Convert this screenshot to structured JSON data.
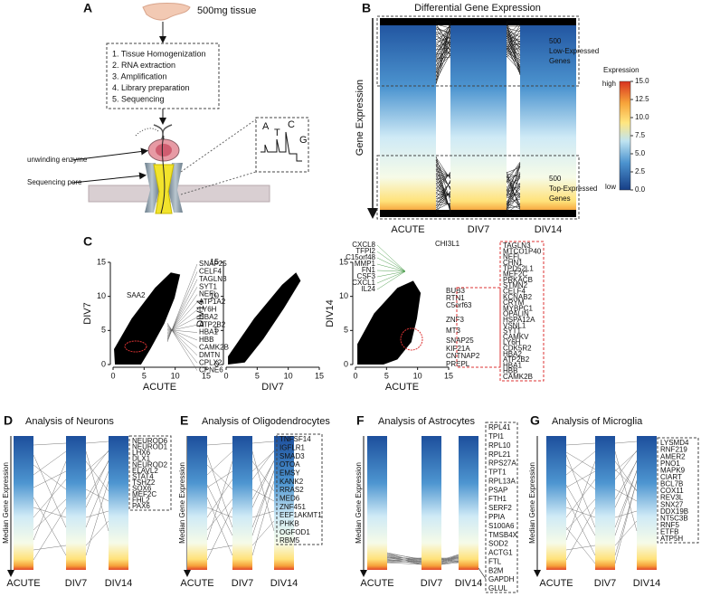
{
  "panel_a": {
    "letter": "A",
    "tissue": "500mg tissue",
    "steps": [
      "1. Tissue Homogenization",
      "2. RNA extraction",
      "3. Amplification",
      "4. Library preparation",
      "5. Sequencing"
    ],
    "enzyme": "unwinding enzyme",
    "pore": "Sequencing pore",
    "bases": [
      "A",
      "T",
      "C",
      "G"
    ]
  },
  "panel_b": {
    "letter": "B",
    "title": "Differential Gene Expression",
    "ylabel": "Gene Expression",
    "columns": [
      "ACUTE",
      "DIV7",
      "DIV14"
    ],
    "low_group": [
      "500",
      "Low-Expressed",
      "Genes"
    ],
    "top_group": [
      "500",
      "Top-Expressed",
      "Genes"
    ],
    "colorbar": {
      "title": "Expression",
      "high": "high",
      "low": "low",
      "lim": [
        0,
        15
      ],
      "ticks": [
        {
          "value": 0,
          "label": "0.0"
        },
        {
          "value": 2.5,
          "label": "2.5"
        },
        {
          "value": 5,
          "label": "5.0"
        },
        {
          "value": 7.5,
          "label": "7.5"
        },
        {
          "value": 10,
          "label": "10.0"
        },
        {
          "value": 12.5,
          "label": "12.5"
        },
        {
          "value": 15,
          "label": "15.0"
        }
      ]
    }
  },
  "panel_c": {
    "letter": "C",
    "plots": [
      {
        "xlabel": "ACUTE",
        "ylabel": "DIV7",
        "xlim": [
          0,
          15
        ],
        "ylim": [
          0,
          15
        ],
        "xticks": [
          0,
          5,
          10,
          15
        ],
        "yticks": [
          0,
          5,
          10,
          15
        ],
        "genes": [
          "SNAP25",
          "CELF4",
          "TAGLN3",
          "SYT1",
          "NEFL",
          "ATP1A2",
          "LY6H",
          "HBA2",
          "ATP2B2",
          "HBA1",
          "HBB",
          "CAMK2B",
          "DMTN",
          "CPLX2",
          "CPNE6"
        ],
        "other_genes": [
          "SAA2"
        ]
      },
      {
        "xlabel": "DIV7",
        "ylabel": "DIV14",
        "xlim": [
          0,
          15
        ],
        "ylim": [
          0,
          15
        ],
        "xticks": [
          0,
          5,
          10,
          15
        ],
        "yticks": [
          0,
          5,
          10,
          15
        ]
      },
      {
        "xlabel": "ACUTE",
        "ylabel": "DIV14",
        "xlim": [
          0,
          15
        ],
        "ylim": [
          0,
          15
        ],
        "xticks": [
          0,
          5,
          10,
          15
        ],
        "yticks": [
          0,
          5,
          10,
          15
        ],
        "up_genes": [
          "CXCL8",
          "TFPI2",
          "C15orf48",
          "MMP1",
          "FN1",
          "CSF3",
          "CXCL1",
          "IL24"
        ],
        "top_gene": "CHI3L1",
        "down_genes": [
          "BUB3",
          "RTN1",
          "C5orf63",
          "ZNF3",
          "MT3",
          "SNAP25",
          "KIF21A",
          "CNTNAP2",
          "PREPL"
        ],
        "box_genes": [
          "TAGLN3",
          "MTCO1P40",
          "NEFL",
          "CHN1",
          "TPD52L1",
          "MEF2C",
          "PRKACB",
          "STMN2",
          "CELF4",
          "KCNAB2",
          "CRYM",
          "MYBPC1",
          "OPALIN",
          "HSPA12A",
          "VSNL1",
          "SYT1",
          "CAMKV",
          "LY6H",
          "CDK5R2",
          "HBA2",
          "ATP2B2",
          "HBA1",
          "HBB",
          "CAMK2B"
        ]
      }
    ]
  },
  "panels": [
    {
      "letter": "D",
      "title": "Analysis of Neurons",
      "ylabel": "Median Gene Expression",
      "columns": [
        "ACUTE",
        "DIV7",
        "DIV14"
      ],
      "genes": [
        "NEUROD6",
        "NEUROD1",
        "LHX6",
        "DLX1",
        "NEUROD2",
        "ELAVL2",
        "STAT4",
        "TSHZ2",
        "SOX6",
        "MEF2C",
        "FHL2",
        "PAX6"
      ]
    },
    {
      "letter": "E",
      "title": "Analysis of Oligodendrocytes",
      "ylabel": "Median Gene Expression",
      "columns": [
        "ACUTE",
        "DIV7",
        "DIV14"
      ],
      "genes": [
        "TNFSF14",
        "IGFLR1",
        "SMAD3",
        "OTOA",
        "EMSY",
        "KANK2",
        "RRAS2",
        "MED6",
        "ZNF451",
        "EEF1AKMT1",
        "PHKB",
        "OGFOD1",
        "RBM5"
      ]
    },
    {
      "letter": "F",
      "title": "Analysis of Astrocytes",
      "ylabel": "Median Gene Expression",
      "columns": [
        "ACUTE",
        "DIV7",
        "DIV14"
      ],
      "genes": [
        "RPL41",
        "TPI1",
        "RPL10",
        "RPL21",
        "RPS27A",
        "TPT1",
        "RPL13A",
        "PSAP",
        "FTH1",
        "SERF2",
        "PPIA",
        "S100A6",
        "TMSB4X",
        "SOD2",
        "ACTG1",
        "FTL",
        "B2M",
        "GAPDH",
        "GLUL"
      ]
    },
    {
      "letter": "G",
      "title": "Analysis of Microglia",
      "ylabel": "Median Gene Expression",
      "columns": [
        "ACUTE",
        "DIV7",
        "DIV14"
      ],
      "genes": [
        "LYSMD4",
        "RNF219",
        "AMER2",
        "PNO1",
        "MAPK9",
        "CIART",
        "BCL7B",
        "COX11",
        "REV3L",
        "SNX27",
        "DDX19B",
        "NT5C3B",
        "RNF5",
        "ETFB",
        "ATP5H"
      ]
    }
  ]
}
